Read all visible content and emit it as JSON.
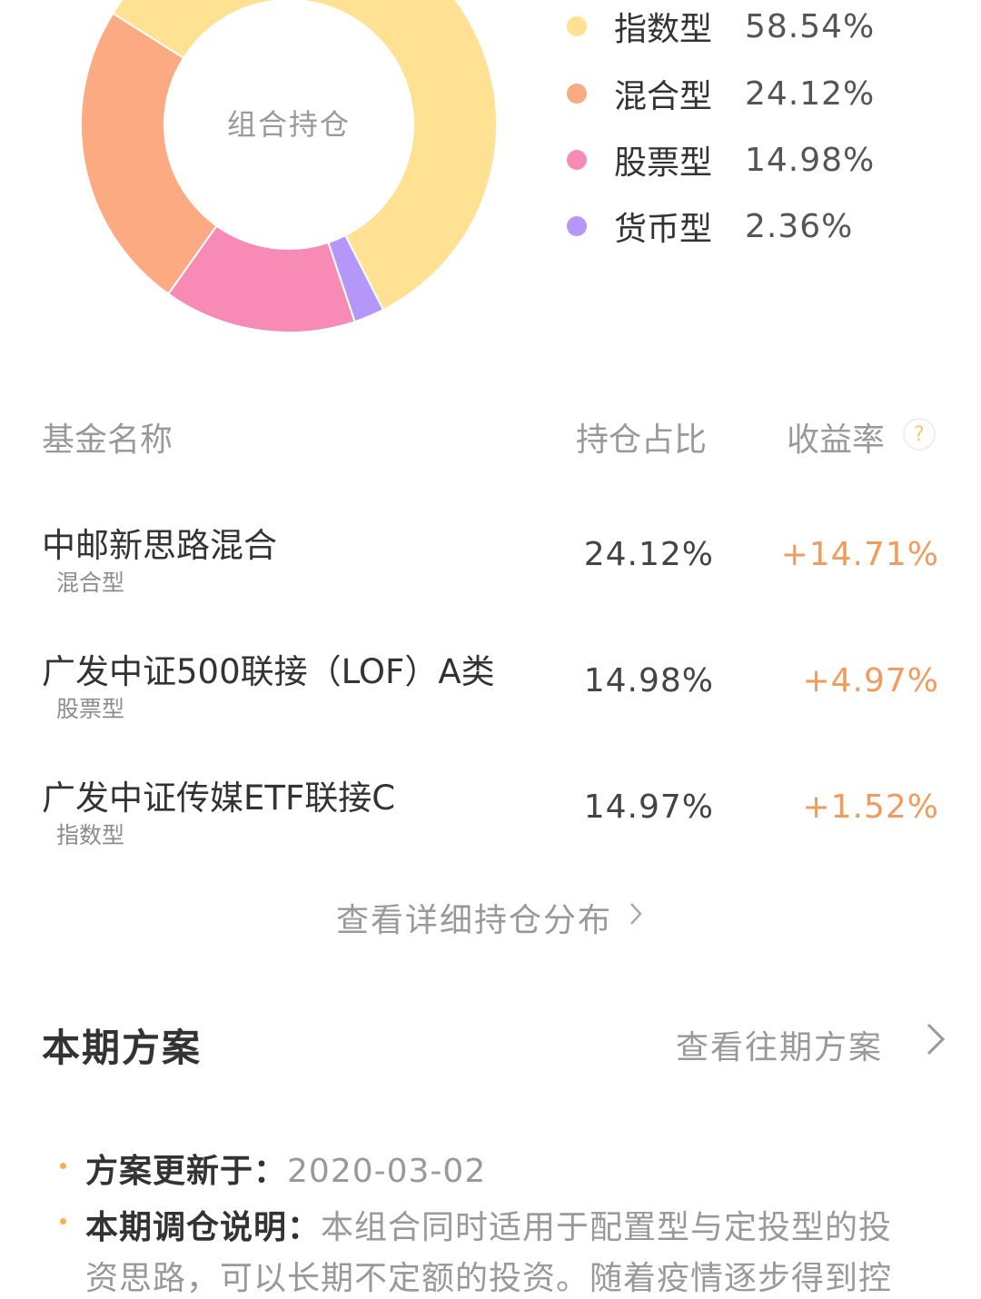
{
  "chart_data": {
    "type": "pie",
    "title": "",
    "center_label": "组合持仓",
    "categories": [
      "指数型",
      "混合型",
      "股票型",
      "货币型"
    ],
    "values": [
      58.54,
      24.12,
      14.98,
      2.36
    ],
    "colors": [
      "#ffe194",
      "#fcaa82",
      "#f78bb6",
      "#b497f8"
    ]
  },
  "legend": [
    {
      "name": "指数型",
      "pct": "58.54%",
      "color": "#ffe194"
    },
    {
      "name": "混合型",
      "pct": "24.12%",
      "color": "#fcaa82"
    },
    {
      "name": "股票型",
      "pct": "14.98%",
      "color": "#f78bb6"
    },
    {
      "name": "货币型",
      "pct": "2.36%",
      "color": "#b497f8"
    }
  ],
  "table": {
    "headers": {
      "name": "基金名称",
      "weight": "持仓占比",
      "return": "收益率",
      "help": "?"
    },
    "rows": [
      {
        "name": "中邮新思路混合",
        "type": "混合型",
        "weight": "24.12%",
        "return": "+14.71%"
      },
      {
        "name": "广发中证500联接（LOF）A类",
        "type": "股票型",
        "weight": "14.98%",
        "return": "+4.97%"
      },
      {
        "name": "广发中证传媒ETF联接C",
        "type": "指数型",
        "weight": "14.97%",
        "return": "+1.52%"
      }
    ],
    "detail_link": "查看详细持仓分布"
  },
  "plan": {
    "title": "本期方案",
    "history_link": "查看往期方案",
    "updated_label": "方案更新于：",
    "updated_value": "2020-03-02",
    "note_label": "本期调仓说明：",
    "note_line1": "本组合同时适用于配置型与定投型的投",
    "note_line2": "资思路，可以长期不定额的投资。随着疫情逐步得到控"
  }
}
